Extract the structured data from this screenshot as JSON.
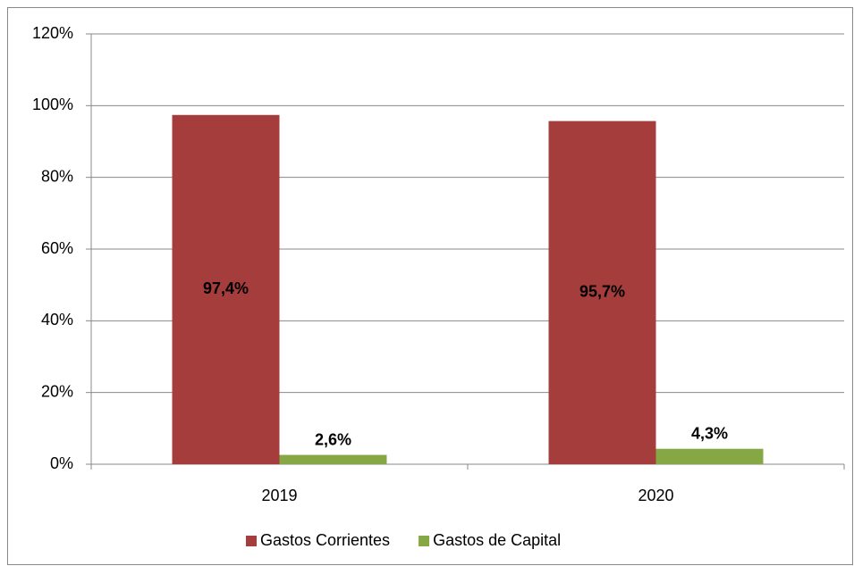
{
  "chart_data": {
    "type": "bar",
    "categories": [
      "2019",
      "2020"
    ],
    "series": [
      {
        "name": "Gastos Corrientes",
        "color": "#a43d3b",
        "values": [
          97.4,
          95.7
        ],
        "value_labels": [
          "97,4%",
          "95,7%"
        ]
      },
      {
        "name": "Gastos de Capital",
        "color": "#86a844",
        "values": [
          2.6,
          4.3
        ],
        "value_labels": [
          "2,6%",
          "4,3%"
        ]
      }
    ],
    "ylim": [
      0,
      120
    ],
    "yticks": [
      {
        "value": 0,
        "label": "0%"
      },
      {
        "value": 20,
        "label": "20%"
      },
      {
        "value": 40,
        "label": "40%"
      },
      {
        "value": 60,
        "label": "60%"
      },
      {
        "value": 80,
        "label": "80%"
      },
      {
        "value": 100,
        "label": "100%"
      },
      {
        "value": 120,
        "label": "120%"
      }
    ],
    "grid": true,
    "legend": "bottom"
  }
}
